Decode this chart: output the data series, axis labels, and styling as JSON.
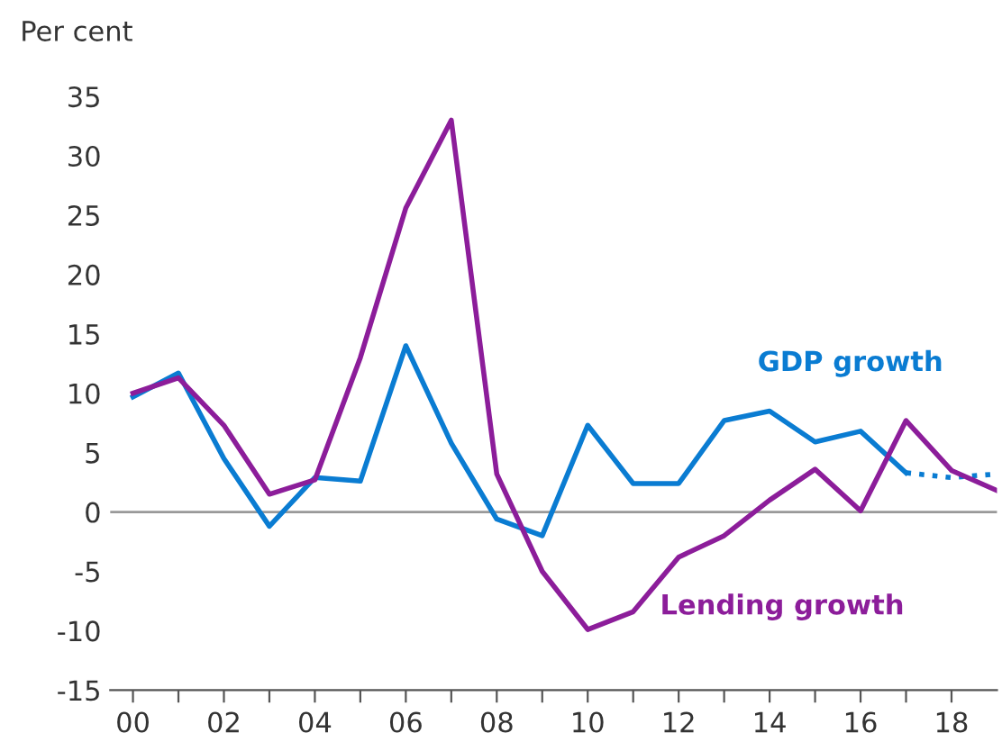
{
  "chart_data": {
    "type": "line",
    "ylabel": "Per cent",
    "series": [
      {
        "name": "GDP growth",
        "color": "#0a7cd2",
        "x": [
          2000,
          2001,
          2002,
          2003,
          2004,
          2005,
          2006,
          2007,
          2008,
          2009,
          2010,
          2011,
          2012,
          2013,
          2014,
          2015,
          2016,
          2017
        ],
        "values": [
          9.7,
          11.7,
          4.5,
          -1.2,
          2.9,
          2.6,
          14,
          5.8,
          -0.6,
          -2,
          7.3,
          2.4,
          2.4,
          7.7,
          8.5,
          5.9,
          6.8,
          3.3
        ]
      },
      {
        "color": "#0a7cd2",
        "line_style": "dotted",
        "x": [
          2017,
          2018,
          2019
        ],
        "values": [
          3.3,
          2.9,
          3.2
        ]
      },
      {
        "name": "Lending growth",
        "color": "#8c1d9a",
        "x": [
          2000,
          2001,
          2002,
          2003,
          2004,
          2005,
          2006,
          2007,
          2008,
          2009,
          2010,
          2011,
          2012,
          2013,
          2014,
          2015,
          2016,
          2017,
          2018,
          2019
        ],
        "values": [
          10,
          11.3,
          7.3,
          1.5,
          2.7,
          13,
          25.6,
          33,
          3.2,
          -5,
          -9.9,
          -8.4,
          -3.8,
          -2,
          1,
          3.6,
          0.1,
          7.7,
          3.5,
          1.8
        ]
      }
    ],
    "xlim": [
      1999.5,
      2019
    ],
    "xticks": [
      {
        "value": 2000,
        "label": "00"
      },
      {
        "value": 2001,
        "label": null
      },
      {
        "value": 2002,
        "label": "02"
      },
      {
        "value": 2003,
        "label": null
      },
      {
        "value": 2004,
        "label": "04"
      },
      {
        "value": 2005,
        "label": null
      },
      {
        "value": 2006,
        "label": "06"
      },
      {
        "value": 2007,
        "label": null
      },
      {
        "value": 2008,
        "label": "08"
      },
      {
        "value": 2009,
        "label": null
      },
      {
        "value": 2010,
        "label": "10"
      },
      {
        "value": 2011,
        "label": null
      },
      {
        "value": 2012,
        "label": "12"
      },
      {
        "value": 2013,
        "label": null
      },
      {
        "value": 2014,
        "label": "14"
      },
      {
        "value": 2015,
        "label": null
      },
      {
        "value": 2016,
        "label": "16"
      },
      {
        "value": 2017,
        "label": null
      },
      {
        "value": 2018,
        "label": "18"
      }
    ],
    "ylim": [
      -15,
      35
    ],
    "yticks": [
      -15,
      -10,
      -5,
      0,
      5,
      10,
      15,
      20,
      25,
      30,
      35
    ],
    "ref_lines": [
      {
        "axis": "y",
        "value": 0,
        "color": "#999999"
      }
    ],
    "grid": false,
    "legend": false
  }
}
